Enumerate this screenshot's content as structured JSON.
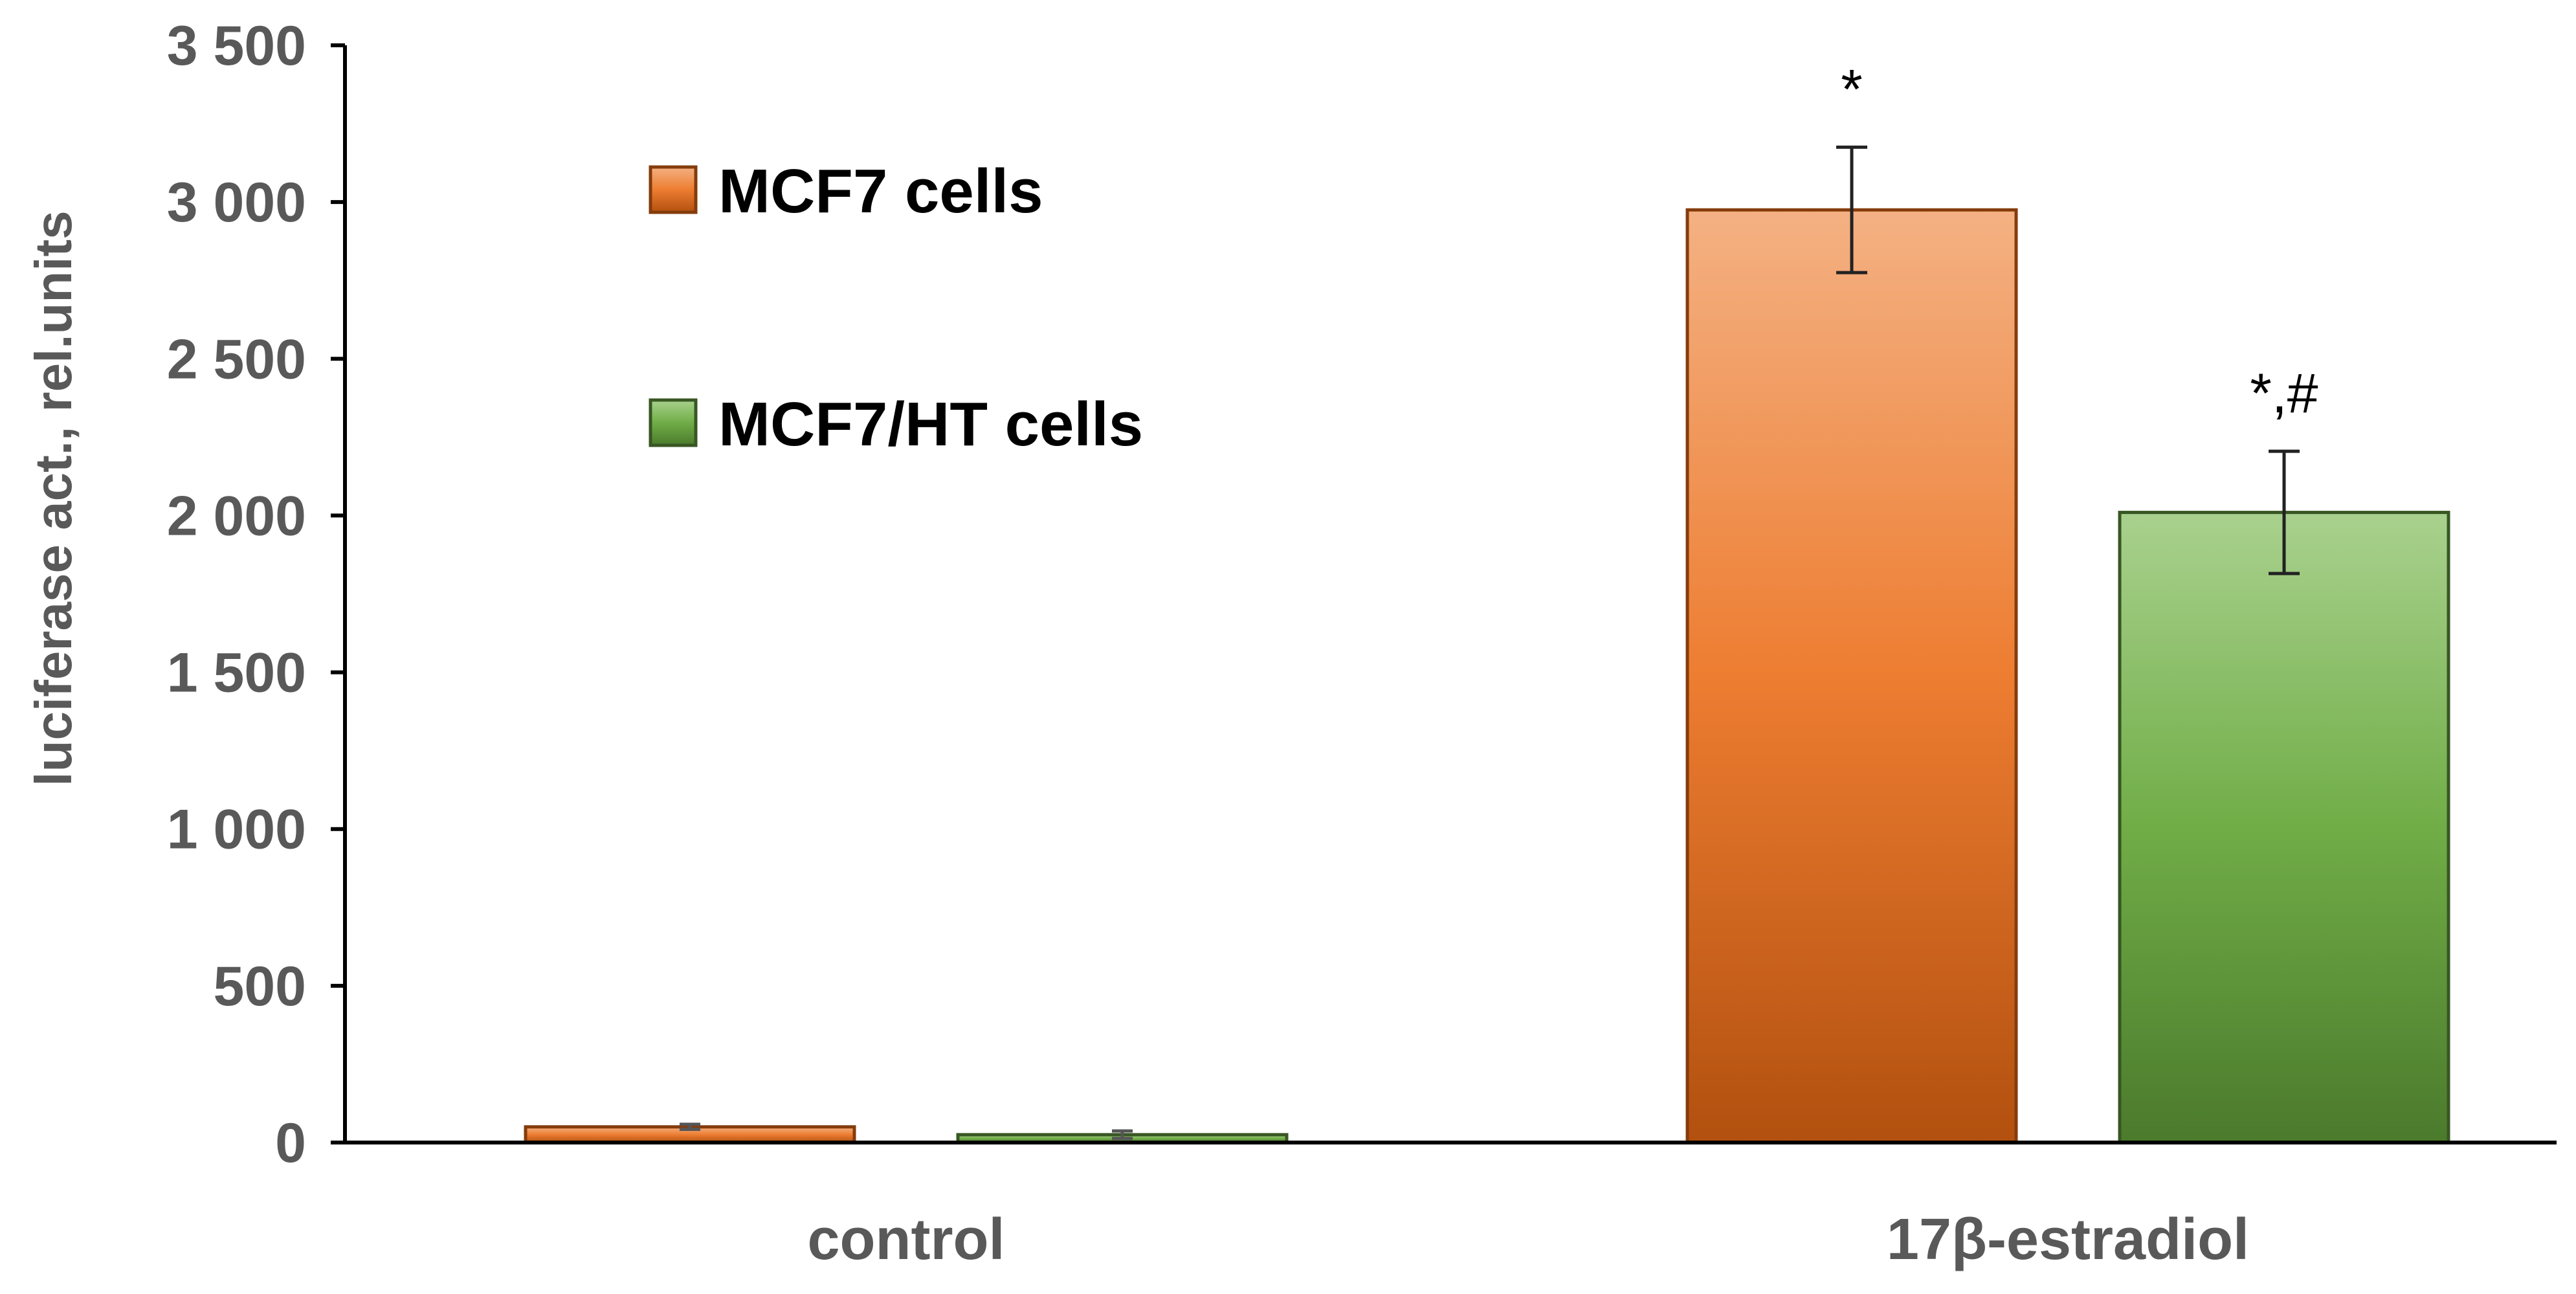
{
  "chart_data": {
    "type": "bar",
    "categories": [
      "control",
      "17β-estradiol"
    ],
    "ylabel": "luciferase act., rel.units",
    "ylim": [
      0,
      3500
    ],
    "yticks": [
      0,
      500,
      1000,
      1500,
      2000,
      2500,
      3000,
      3500
    ],
    "ytick_labels": [
      "0",
      "500",
      "1 000",
      "1 500",
      "2 000",
      "2 500",
      "3 000",
      "3 500"
    ],
    "grid": false,
    "legend_position": "top-left",
    "series": [
      {
        "name": "MCF7 cells",
        "values": [
          50,
          2975
        ],
        "errors": [
          8,
          200
        ],
        "annotations": [
          "",
          "*"
        ],
        "color_top": "#f4b183",
        "color_mid": "#ed7d31",
        "color_bottom": "#b2500f",
        "stroke": "#843c0c"
      },
      {
        "name": "MCF7/HT cells",
        "values": [
          25,
          2010
        ],
        "errors": [
          12,
          195
        ],
        "annotations": [
          "",
          "*,#"
        ],
        "color_top": "#a9d18e",
        "color_mid": "#70ad47",
        "color_bottom": "#4b7a2c",
        "stroke": "#385723"
      }
    ]
  }
}
